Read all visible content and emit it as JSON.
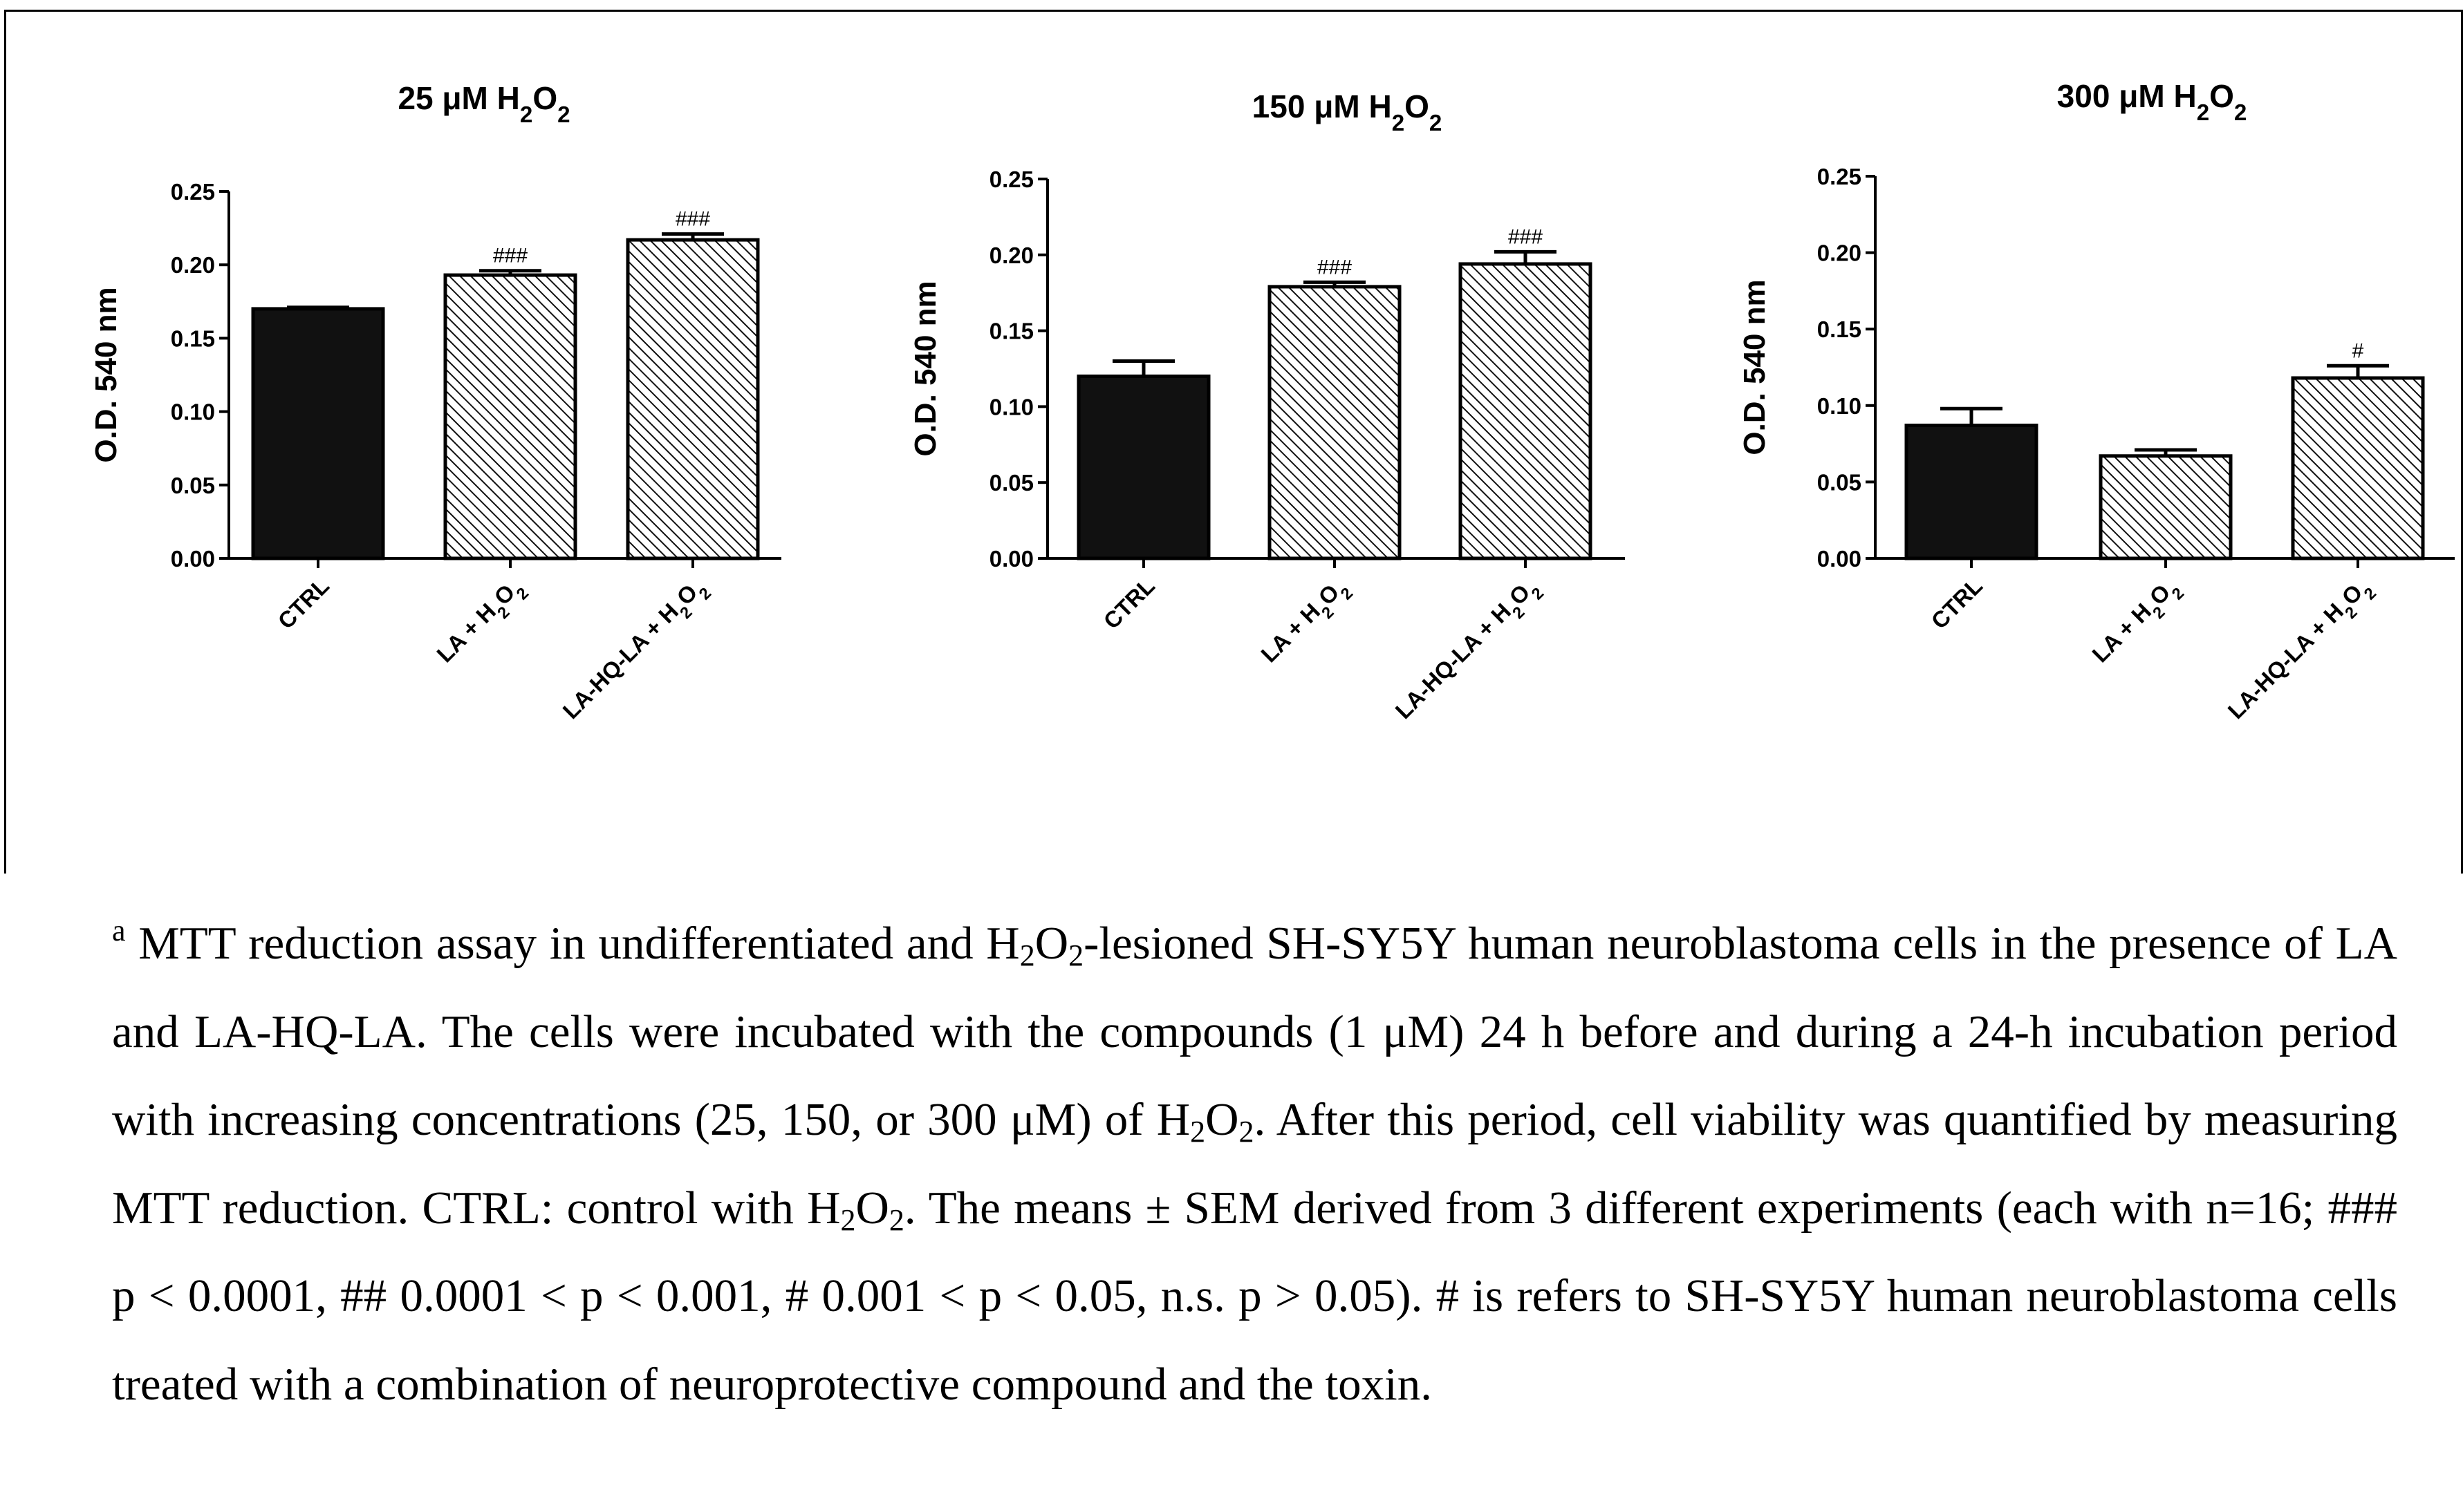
{
  "chart_data": [
    {
      "type": "bar",
      "title": "25 μM H2O2",
      "ylabel": "O.D. 540 nm",
      "xlabel": "",
      "ylim": [
        0,
        0.25
      ],
      "yticks": [
        "0.00",
        "0.05",
        "0.10",
        "0.15",
        "0.20",
        "0.25"
      ],
      "categories": [
        "CTRL",
        "LA + H2O2",
        "LA-HQ-LA + H2O2"
      ],
      "values": [
        0.17,
        0.193,
        0.217
      ],
      "errors": [
        0.001,
        0.003,
        0.004
      ],
      "fill": [
        "solid",
        "hatched",
        "hatched"
      ],
      "annotations": [
        "",
        "###",
        "###"
      ]
    },
    {
      "type": "bar",
      "title": "150 μM H2O2",
      "ylabel": "O.D. 540 nm",
      "xlabel": "",
      "ylim": [
        0,
        0.25
      ],
      "yticks": [
        "0.00",
        "0.05",
        "0.10",
        "0.15",
        "0.20",
        "0.25"
      ],
      "categories": [
        "CTRL",
        "LA + H2O2",
        "LA-HQ-LA + H2O2"
      ],
      "values": [
        0.12,
        0.179,
        0.194
      ],
      "errors": [
        0.01,
        0.003,
        0.008
      ],
      "fill": [
        "solid",
        "hatched",
        "hatched"
      ],
      "annotations": [
        "",
        "###",
        "###"
      ]
    },
    {
      "type": "bar",
      "title": "300 μM H2O2",
      "ylabel": "O.D. 540 nm",
      "xlabel": "",
      "ylim": [
        0,
        0.25
      ],
      "yticks": [
        "0.00",
        "0.05",
        "0.10",
        "0.15",
        "0.20",
        "0.25"
      ],
      "categories": [
        "CTRL",
        "LA + H2O2",
        "LA-HQ-LA + H2O2"
      ],
      "values": [
        0.087,
        0.067,
        0.118
      ],
      "errors": [
        0.011,
        0.004,
        0.008
      ],
      "fill": [
        "solid",
        "hatched",
        "hatched"
      ],
      "annotations": [
        "",
        "",
        "#"
      ]
    }
  ],
  "caption": {
    "marker": "a",
    "p1": " MTT reduction assay in undifferentiated and H",
    "p2": "-lesioned SH-SY5Y human neuroblastoma cells in the presence of LA and LA-HQ-LA. The cells were incubated with the compounds (1 μM) 24 h before and during a 24-h incubation period with increasing concentrations (25, 150, or 300 μM) of H",
    "p3": ". After this period, cell viability was quantified by measuring MTT reduction. CTRL: control with H",
    "p4": ". The means ± SEM derived from 3 different experiments (each with n=16; ### p < 0.0001, ## 0.0001 < p < 0.001, # 0.001 < p < 0.05, n.s. p > 0.05). # is refers to SH-SY5Y human neuroblastoma cells treated with a combination of neuroprotective compound and the toxin.",
    "chem_h": "H",
    "chem_o": "O",
    "sub2": "2"
  }
}
